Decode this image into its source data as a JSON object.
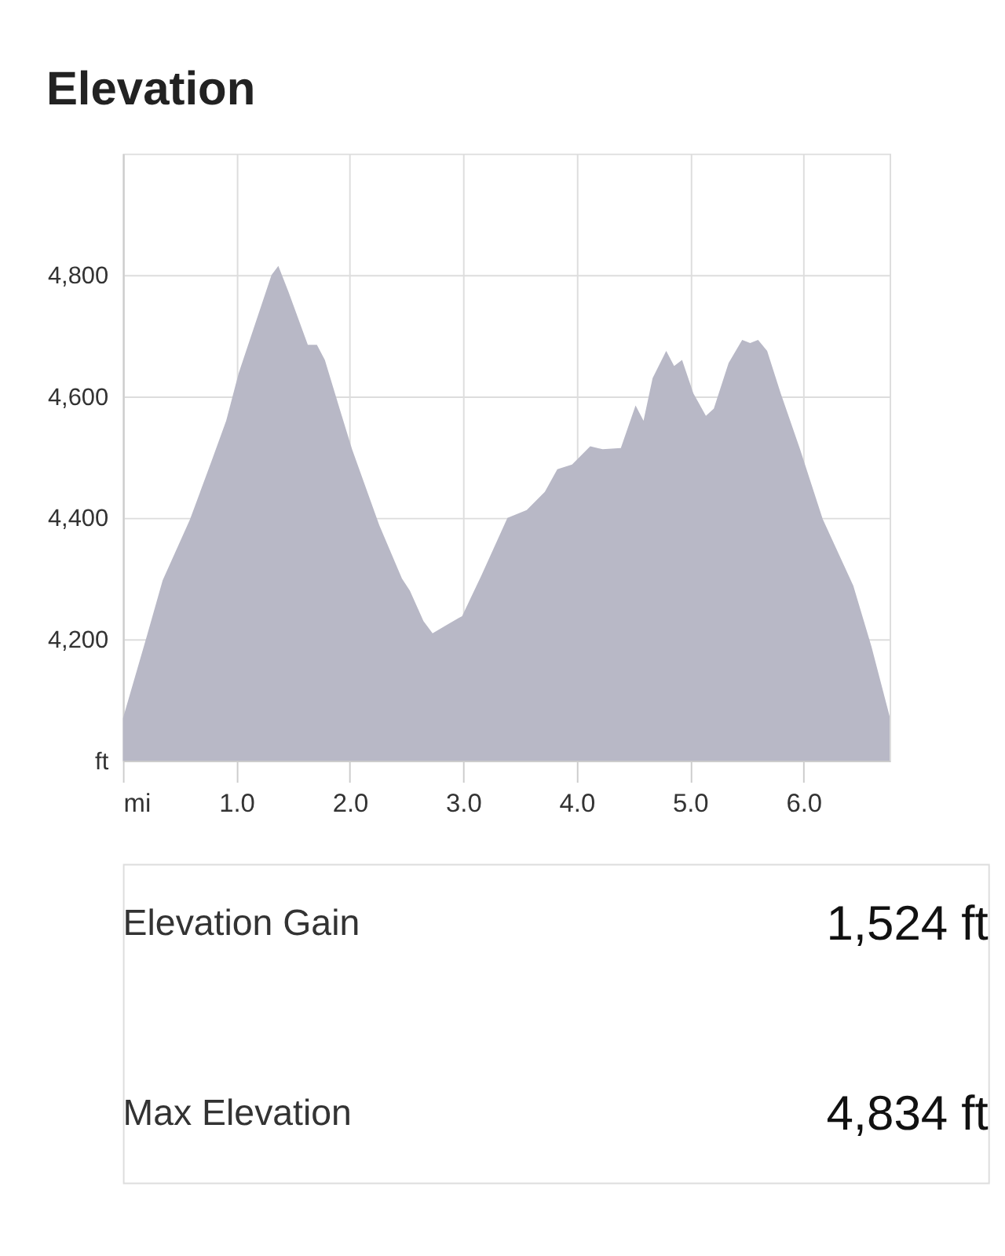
{
  "chart_data": {
    "type": "area",
    "title": "Elevation",
    "x": [
      0,
      0.21,
      0.35,
      0.59,
      0.78,
      0.91,
      1.02,
      1.31,
      1.37,
      1.46,
      1.63,
      1.71,
      1.78,
      1.91,
      2.02,
      2.26,
      2.46,
      2.53,
      2.65,
      2.73,
      2.85,
      2.96,
      2.99,
      3.16,
      3.39,
      3.56,
      3.72,
      3.83,
      3.96,
      4.12,
      4.23,
      4.39,
      4.52,
      4.59,
      4.67,
      4.79,
      4.86,
      4.93,
      5.03,
      5.14,
      5.21,
      5.34,
      5.46,
      5.53,
      5.6,
      5.68,
      5.8,
      5.97,
      6.17,
      6.44,
      6.6,
      6.76
    ],
    "series": [
      {
        "color": "#b8b8c6",
        "values": [
          4070,
          4205,
          4297,
          4397,
          4493,
          4560,
          4638,
          4800,
          4815,
          4772,
          4685,
          4685,
          4660,
          4580,
          4513,
          4388,
          4300,
          4280,
          4230,
          4210,
          4223,
          4235,
          4238,
          4305,
          4400,
          4413,
          4443,
          4480,
          4488,
          4518,
          4513,
          4515,
          4585,
          4560,
          4630,
          4675,
          4650,
          4660,
          4605,
          4568,
          4580,
          4655,
          4693,
          4688,
          4693,
          4675,
          4605,
          4513,
          4398,
          4288,
          4188,
          4073
        ]
      }
    ],
    "xlim": [
      0,
      6.76
    ],
    "xticks": [
      {
        "value": 0,
        "label": "mi"
      },
      {
        "value": 1,
        "label": "1.0"
      },
      {
        "value": 2,
        "label": "2.0"
      },
      {
        "value": 3,
        "label": "3.0"
      },
      {
        "value": 4,
        "label": "4.0"
      },
      {
        "value": 5,
        "label": "5.0"
      },
      {
        "value": 6,
        "label": "6.0"
      }
    ],
    "ylim": [
      4000,
      5000
    ],
    "yticks": [
      {
        "value": 4000,
        "label": "ft"
      },
      {
        "value": 4200,
        "label": "4,200"
      },
      {
        "value": 4400,
        "label": "4,400"
      },
      {
        "value": 4600,
        "label": "4,600"
      },
      {
        "value": 4800,
        "label": "4,800"
      }
    ],
    "grid": true,
    "annotations": [
      "Elevation Gain",
      "1,524 ft",
      "Max Elevation",
      "4,834 ft"
    ]
  }
}
